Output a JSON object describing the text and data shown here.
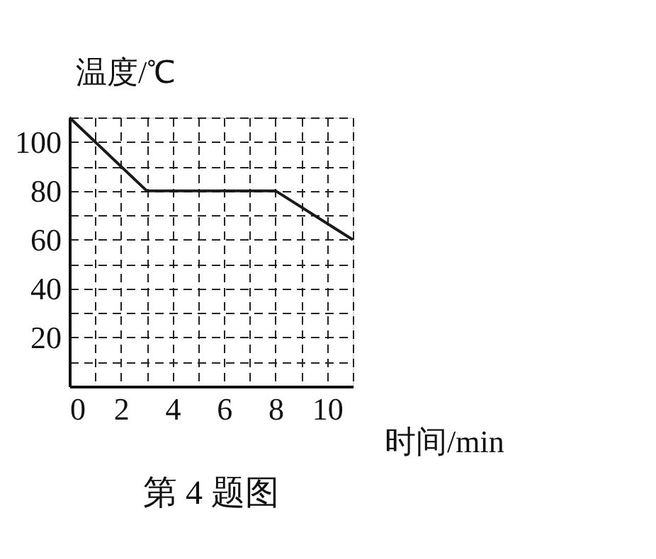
{
  "chart_data": {
    "type": "line",
    "xlabel": "时间/min",
    "ylabel": "温度/℃",
    "annotations": [
      "第 4 题图"
    ],
    "x": [
      0,
      3,
      8,
      11
    ],
    "values": [
      110,
      80,
      80,
      60
    ],
    "color": "#1a1a1a",
    "xlim": [
      0,
      11
    ],
    "ylim": [
      0,
      110
    ],
    "xticks": [
      0,
      {
        "value": 1,
        "label": null
      },
      2,
      {
        "value": 3,
        "label": null
      },
      4,
      {
        "value": 5,
        "label": null
      },
      6,
      {
        "value": 7,
        "label": null
      },
      8,
      {
        "value": 9,
        "label": null
      },
      10,
      {
        "value": 11,
        "label": null
      }
    ],
    "yticks": [
      {
        "value": 0,
        "label": null
      },
      {
        "value": 10,
        "label": null
      },
      20,
      {
        "value": 30,
        "label": null
      },
      40,
      {
        "value": 50,
        "label": null
      },
      60,
      {
        "value": 70,
        "label": null
      },
      80,
      {
        "value": 90,
        "label": null
      },
      100,
      {
        "value": 110,
        "label": null
      }
    ],
    "grid": true,
    "marker": "none",
    "line_style": "solid"
  }
}
